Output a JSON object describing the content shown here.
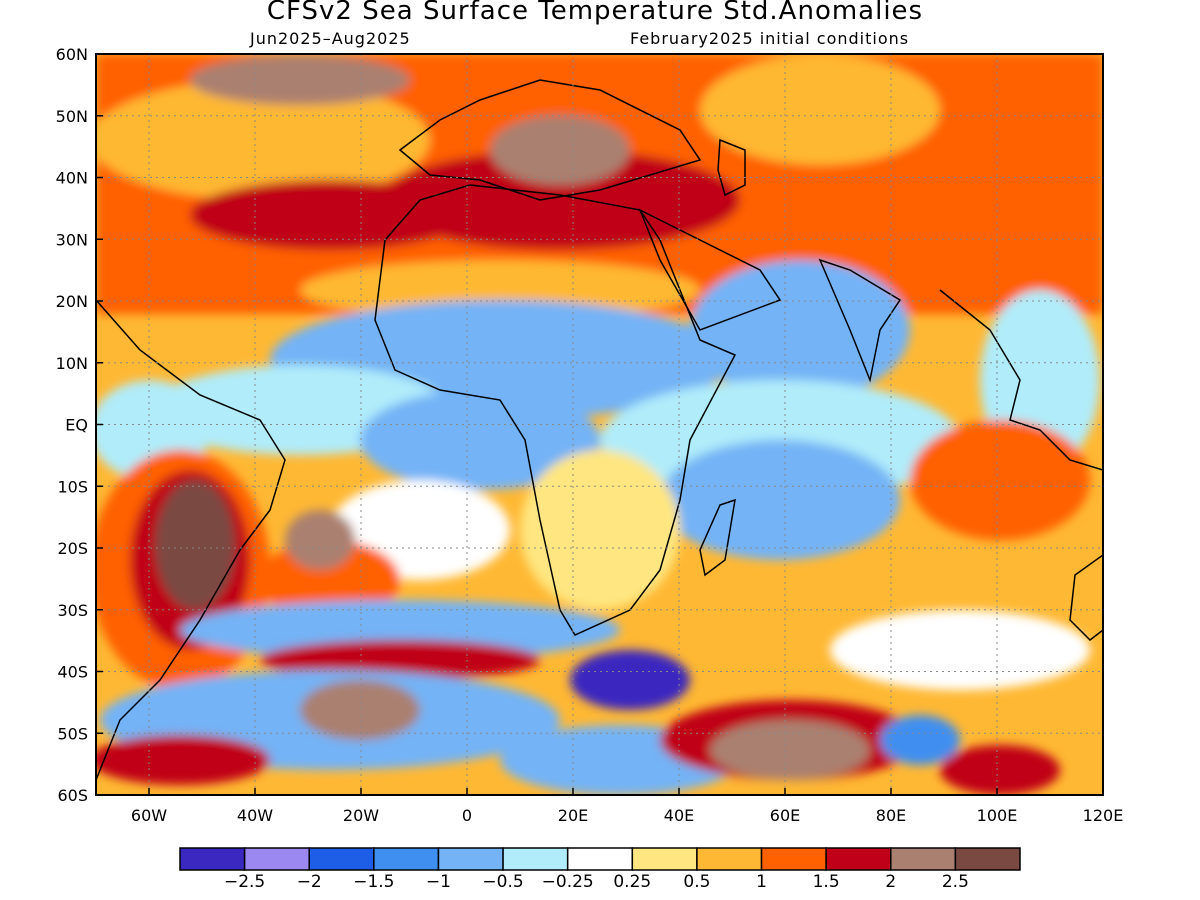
{
  "header": {
    "title": "CFSv2 Sea Surface Temperature Std.Anomalies",
    "period": "Jun2025–Aug2025",
    "initial_conditions": "February2025 initial conditions"
  },
  "map": {
    "lon_labels": [
      "60W",
      "40W",
      "20W",
      "0",
      "20E",
      "40E",
      "60E",
      "80E",
      "100E",
      "120E"
    ],
    "lat_labels": [
      "60N",
      "50N",
      "40N",
      "30N",
      "20N",
      "10N",
      "EQ",
      "10S",
      "20S",
      "30S",
      "40S",
      "50S",
      "60S"
    ],
    "lon_range": [
      -70,
      120
    ],
    "lat_range": [
      -60,
      60
    ]
  },
  "colorbar": {
    "colors": [
      "#3a28c0",
      "#9b88f0",
      "#1e5ee6",
      "#3f8ff0",
      "#73b3f6",
      "#b0ecfa",
      "#ffffff",
      "#ffe680",
      "#ffb833",
      "#ff6000",
      "#c00018",
      "#aa8070",
      "#7a4a42"
    ],
    "labels": [
      "−2.5",
      "−2",
      "−1.5",
      "−1",
      "−0.5",
      "−0.25",
      "0.25",
      "0.5",
      "1",
      "1.5",
      "2",
      "2.5"
    ]
  }
}
